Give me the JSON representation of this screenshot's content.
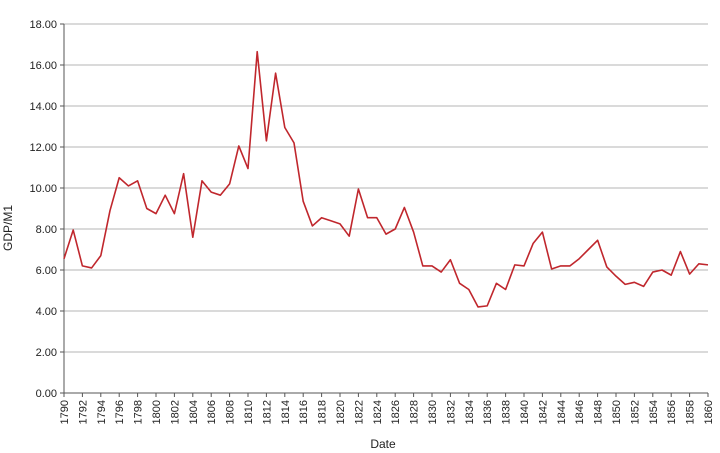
{
  "chart_data": {
    "type": "line",
    "xlabel": "Date",
    "ylabel": "GDP/M1",
    "xlim": [
      1790,
      1860
    ],
    "ylim": [
      0,
      18
    ],
    "y_ticks": [
      "0.00",
      "2.00",
      "4.00",
      "6.00",
      "8.00",
      "10.00",
      "12.00",
      "14.00",
      "16.00",
      "18.00"
    ],
    "x_ticks": [
      "1790",
      "1792",
      "1794",
      "1796",
      "1798",
      "1800",
      "1802",
      "1804",
      "1806",
      "1808",
      "1810",
      "1812",
      "1814",
      "1816",
      "1818",
      "1820",
      "1822",
      "1824",
      "1826",
      "1828",
      "1830",
      "1832",
      "1834",
      "1836",
      "1838",
      "1840",
      "1842",
      "1844",
      "1846",
      "1848",
      "1850",
      "1852",
      "1854",
      "1856",
      "1858",
      "1860"
    ],
    "grid": "horizontal",
    "line_color": "#c0272d",
    "series": [
      {
        "x": [
          1790,
          1791,
          1792,
          1793,
          1794,
          1795,
          1796,
          1797,
          1798,
          1799,
          1800,
          1801,
          1802,
          1803,
          1804,
          1805,
          1806,
          1807,
          1808,
          1809,
          1810,
          1811,
          1812,
          1813,
          1814,
          1815,
          1816,
          1817,
          1818,
          1819,
          1820,
          1821,
          1822,
          1823,
          1824,
          1825,
          1826,
          1827,
          1828,
          1829,
          1830,
          1831,
          1832,
          1833,
          1834,
          1835,
          1836,
          1837,
          1838,
          1839,
          1840,
          1841,
          1842,
          1843,
          1844,
          1845,
          1846,
          1847,
          1848,
          1849,
          1850,
          1851,
          1852,
          1853,
          1854,
          1855,
          1856,
          1857,
          1858,
          1859,
          1860
        ],
        "y": [
          6.55,
          7.95,
          6.2,
          6.1,
          6.7,
          8.9,
          10.5,
          10.1,
          10.35,
          9.0,
          8.75,
          9.65,
          8.75,
          10.7,
          7.6,
          10.35,
          9.8,
          9.65,
          10.2,
          12.05,
          10.95,
          16.65,
          12.3,
          15.6,
          12.95,
          12.2,
          9.35,
          8.15,
          8.55,
          8.4,
          8.25,
          7.65,
          9.95,
          8.55,
          8.55,
          7.75,
          8.0,
          9.05,
          7.85,
          6.2,
          6.2,
          5.9,
          6.5,
          5.35,
          5.05,
          4.2,
          4.25,
          5.35,
          5.05,
          6.25,
          6.2,
          7.3,
          7.85,
          6.05,
          6.2,
          6.2,
          6.55,
          7.0,
          7.45,
          6.15,
          5.7,
          5.3,
          5.4,
          5.2,
          5.9,
          6.0,
          5.75,
          6.9,
          5.8,
          6.3,
          6.25
        ]
      }
    ]
  }
}
